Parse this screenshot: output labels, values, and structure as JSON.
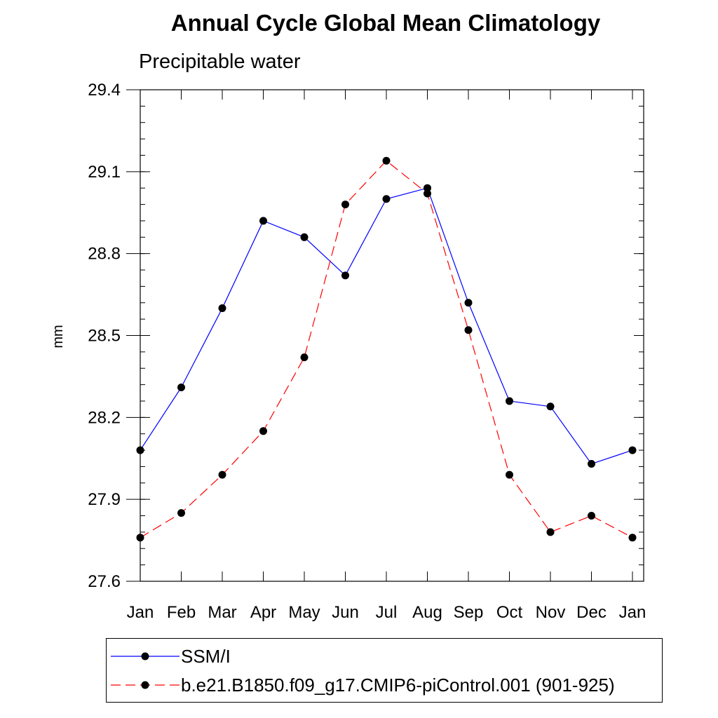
{
  "chart_data": {
    "type": "line",
    "title": "Annual Cycle Global Mean Climatology",
    "subtitle": "Precipitable water",
    "xlabel": "",
    "ylabel": "mm",
    "categories": [
      "Jan",
      "Feb",
      "Mar",
      "Apr",
      "May",
      "Jun",
      "Jul",
      "Aug",
      "Sep",
      "Oct",
      "Nov",
      "Dec",
      "Jan"
    ],
    "ylim": [
      27.6,
      29.4
    ],
    "yticks": [
      "27.6",
      "27.9",
      "28.2",
      "28.5",
      "28.8",
      "29.1",
      "29.4"
    ],
    "yticks_values": [
      27.6,
      27.9,
      28.2,
      28.5,
      28.8,
      29.1,
      29.4
    ],
    "grid": false,
    "legend_position": "bottom",
    "series": [
      {
        "name": "SSM/I",
        "color": "#0000ff",
        "style": "solid",
        "values": [
          28.08,
          28.31,
          28.6,
          28.92,
          28.86,
          28.72,
          29.0,
          29.04,
          28.62,
          28.26,
          28.24,
          28.03,
          28.08
        ]
      },
      {
        "name": "b.e21.B1850.f09_g17.CMIP6-piControl.001 (901-925)",
        "color": "#ff0000",
        "style": "dashed",
        "values": [
          27.76,
          27.85,
          27.99,
          28.15,
          28.42,
          28.98,
          29.14,
          29.02,
          28.52,
          27.99,
          27.78,
          27.84,
          27.76
        ]
      }
    ]
  }
}
